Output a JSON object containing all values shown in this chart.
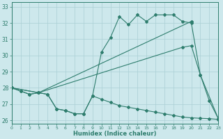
{
  "xlabel": "Humidex (Indice chaleur)",
  "background_color": "#cde8ec",
  "line_color": "#2e7d6d",
  "grid_color": "#aacfd5",
  "xlim": [
    0,
    23
  ],
  "ylim": [
    25.8,
    33.3
  ],
  "yticks": [
    26,
    27,
    28,
    29,
    30,
    31,
    32,
    33
  ],
  "xticks": [
    0,
    1,
    2,
    3,
    4,
    5,
    6,
    7,
    8,
    9,
    10,
    11,
    12,
    13,
    14,
    15,
    16,
    17,
    18,
    19,
    20,
    21,
    22,
    23
  ],
  "line1_x": [
    0,
    1,
    2,
    3,
    4,
    5,
    6,
    7,
    8,
    9,
    10,
    11,
    12,
    13,
    14,
    15,
    16,
    17,
    18,
    19,
    20,
    21,
    22,
    23
  ],
  "line1_y": [
    28.0,
    27.8,
    27.6,
    27.7,
    27.6,
    26.7,
    26.6,
    26.4,
    26.4,
    27.5,
    30.2,
    31.1,
    32.4,
    31.9,
    32.5,
    32.1,
    32.5,
    32.5,
    32.5,
    32.1,
    32.0,
    28.8,
    27.2,
    26.1
  ],
  "line2_x": [
    0,
    3,
    20
  ],
  "line2_y": [
    28.0,
    27.7,
    32.1
  ],
  "line3_x": [
    0,
    3,
    19,
    20,
    21,
    23
  ],
  "line3_y": [
    28.0,
    27.7,
    30.5,
    30.6,
    28.8,
    26.1
  ],
  "line4_x": [
    0,
    1,
    2,
    3,
    4,
    5,
    6,
    7,
    8,
    9,
    10,
    11,
    12,
    13,
    14,
    15,
    16,
    17,
    18,
    19,
    20,
    21,
    22,
    23
  ],
  "line4_y": [
    28.0,
    27.8,
    27.6,
    27.7,
    27.6,
    26.7,
    26.6,
    26.4,
    26.4,
    27.5,
    27.3,
    27.1,
    26.9,
    26.8,
    26.7,
    26.6,
    26.5,
    26.4,
    26.3,
    26.2,
    26.15,
    26.12,
    26.1,
    26.05
  ]
}
